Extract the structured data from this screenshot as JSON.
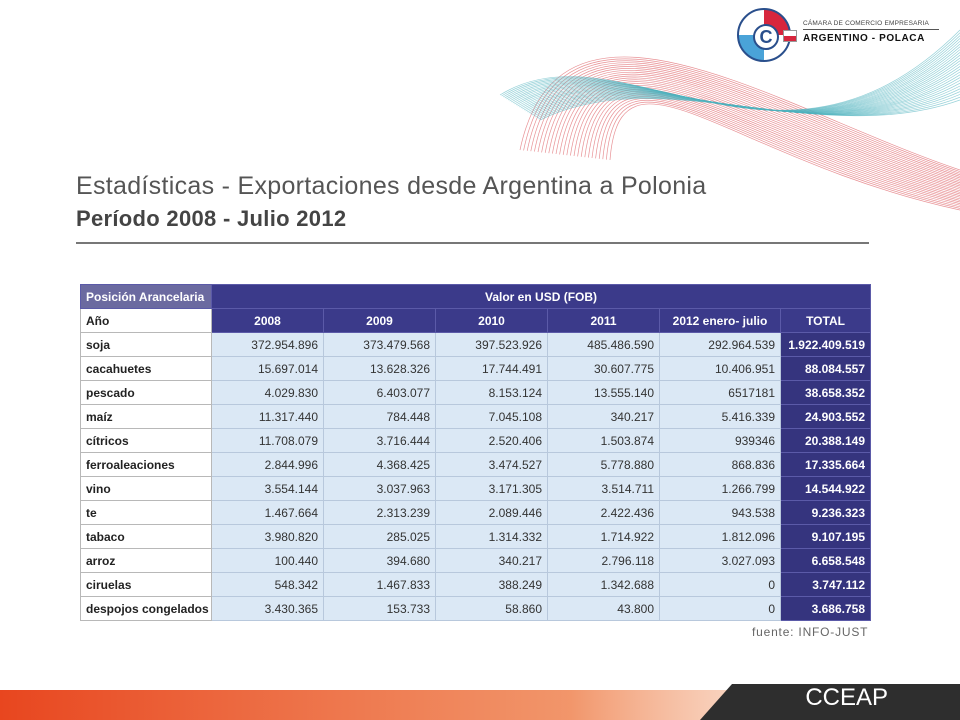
{
  "header": {
    "logo_letter": "C",
    "org_line1": "CÁMARA DE COMERCIO EMPRESARIA",
    "org_line2": "ARGENTINO - POLACA"
  },
  "title": {
    "line1": "Estadísticas - Exportaciones desde Argentina a Polonia",
    "line2": "Período 2008 - Julio 2012"
  },
  "table": {
    "corner_label": "Posición Arancelaria",
    "group_label": "Valor en USD (FOB)",
    "row_header": "Año",
    "columns": [
      "2008",
      "2009",
      "2010",
      "2011",
      "2012 enero- julio",
      "TOTAL"
    ],
    "rows": [
      {
        "label": "soja",
        "values": [
          "372.954.896",
          "373.479.568",
          "397.523.926",
          "485.486.590",
          "292.964.539"
        ],
        "total": "1.922.409.519"
      },
      {
        "label": "cacahuetes",
        "values": [
          "15.697.014",
          "13.628.326",
          "17.744.491",
          "30.607.775",
          "10.406.951"
        ],
        "total": "88.084.557"
      },
      {
        "label": "pescado",
        "values": [
          "4.029.830",
          "6.403.077",
          "8.153.124",
          "13.555.140",
          "6517181"
        ],
        "total": "38.658.352"
      },
      {
        "label": "maíz",
        "values": [
          "11.317.440",
          "784.448",
          "7.045.108",
          "340.217",
          "5.416.339"
        ],
        "total": "24.903.552"
      },
      {
        "label": "cítricos",
        "values": [
          "11.708.079",
          "3.716.444",
          "2.520.406",
          "1.503.874",
          "939346"
        ],
        "total": "20.388.149"
      },
      {
        "label": "ferroaleaciones",
        "values": [
          "2.844.996",
          "4.368.425",
          "3.474.527",
          "5.778.880",
          "868.836"
        ],
        "total": "17.335.664"
      },
      {
        "label": "vino",
        "values": [
          "3.554.144",
          "3.037.963",
          "3.171.305",
          "3.514.711",
          "1.266.799"
        ],
        "total": "14.544.922"
      },
      {
        "label": "te",
        "values": [
          "1.467.664",
          "2.313.239",
          "2.089.446",
          "2.422.436",
          "943.538"
        ],
        "total": "9.236.323"
      },
      {
        "label": "tabaco",
        "values": [
          "3.980.820",
          "285.025",
          "1.314.332",
          "1.714.922",
          "1.812.096"
        ],
        "total": "9.107.195"
      },
      {
        "label": "arroz",
        "values": [
          "100.440",
          "394.680",
          "340.217",
          "2.796.118",
          "3.027.093"
        ],
        "total": "6.658.548"
      },
      {
        "label": "ciruelas",
        "values": [
          "548.342",
          "1.467.833",
          "388.249",
          "1.342.688",
          "0"
        ],
        "total": "3.747.112"
      },
      {
        "label": "despojos congelados",
        "values": [
          "3.430.365",
          "153.733",
          "58.860",
          "43.800",
          "0"
        ],
        "total": "3.686.758"
      }
    ]
  },
  "source": "fuente: INFO-JUST",
  "footer": {
    "brand": "CCEAP"
  },
  "colors": {
    "header_bg": "#3b3a8a",
    "cell_bg": "#dbe8f5",
    "wave_red": "#d9484f",
    "wave_teal": "#4fb3be",
    "bar_orange": "#e8461f",
    "bar_dark": "#2e2e2e"
  }
}
